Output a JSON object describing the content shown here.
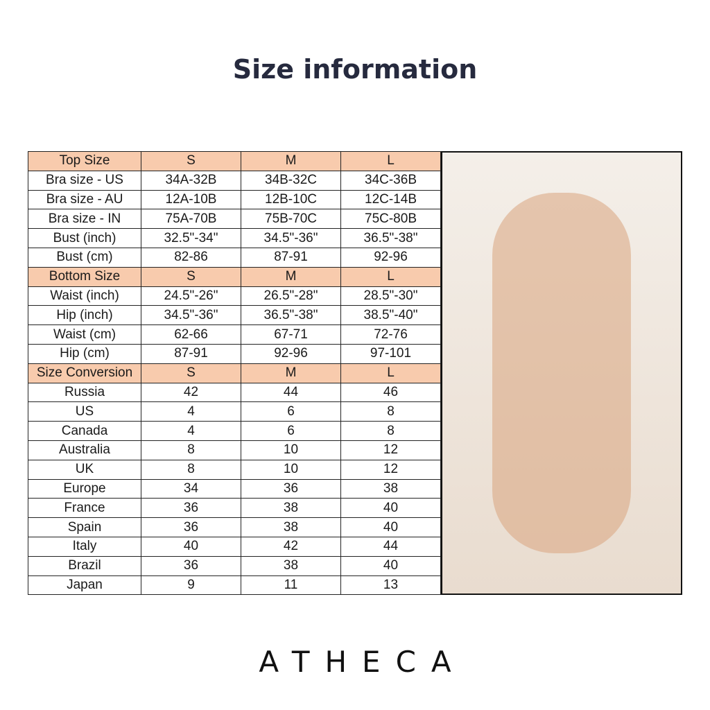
{
  "title": "Size information",
  "colors": {
    "header_bg": "#f8cbad",
    "title": "#262a3e"
  },
  "table": {
    "rows": [
      {
        "header": true,
        "cells": [
          "Top Size",
          "S",
          "M",
          "L"
        ]
      },
      {
        "cells": [
          "Bra size - US",
          "34A-32B",
          "34B-32C",
          "34C-36B"
        ]
      },
      {
        "cells": [
          "Bra size - AU",
          "12A-10B",
          "12B-10C",
          "12C-14B"
        ]
      },
      {
        "cells": [
          "Bra size - IN",
          "75A-70B",
          "75B-70C",
          "75C-80B"
        ]
      },
      {
        "cells": [
          "Bust (inch)",
          "32.5\"-34\"",
          "34.5\"-36\"",
          "36.5\"-38\""
        ]
      },
      {
        "cells": [
          "Bust (cm)",
          "82-86",
          "87-91",
          "92-96"
        ]
      },
      {
        "header": true,
        "cells": [
          "Bottom Size",
          "S",
          "M",
          "L"
        ]
      },
      {
        "cells": [
          "Waist (inch)",
          "24.5\"-26\"",
          "26.5\"-28\"",
          "28.5\"-30\""
        ]
      },
      {
        "cells": [
          "Hip (inch)",
          "34.5\"-36\"",
          "36.5\"-38\"",
          "38.5\"-40\""
        ]
      },
      {
        "cells": [
          "Waist (cm)",
          "62-66",
          "67-71",
          "72-76"
        ]
      },
      {
        "cells": [
          "Hip (cm)",
          "87-91",
          "92-96",
          "97-101"
        ]
      },
      {
        "header": true,
        "cells": [
          "Size Conversion",
          "S",
          "M",
          "L"
        ]
      },
      {
        "cells": [
          "Russia",
          "42",
          "44",
          "46"
        ]
      },
      {
        "cells": [
          "US",
          "4",
          "6",
          "8"
        ]
      },
      {
        "cells": [
          "Canada",
          "4",
          "6",
          "8"
        ]
      },
      {
        "cells": [
          "Australia",
          "8",
          "10",
          "12"
        ]
      },
      {
        "cells": [
          "UK",
          "8",
          "10",
          "12"
        ]
      },
      {
        "cells": [
          "Europe",
          "34",
          "36",
          "38"
        ]
      },
      {
        "cells": [
          "France",
          "36",
          "38",
          "40"
        ]
      },
      {
        "cells": [
          "Spain",
          "36",
          "38",
          "40"
        ]
      },
      {
        "cells": [
          "Italy",
          "40",
          "42",
          "44"
        ]
      },
      {
        "cells": [
          "Brazil",
          "36",
          "38",
          "40"
        ]
      },
      {
        "cells": [
          "Japan",
          "9",
          "11",
          "13"
        ]
      }
    ]
  },
  "photo": {
    "icon": "model-photo"
  },
  "brand": "ATHECA"
}
